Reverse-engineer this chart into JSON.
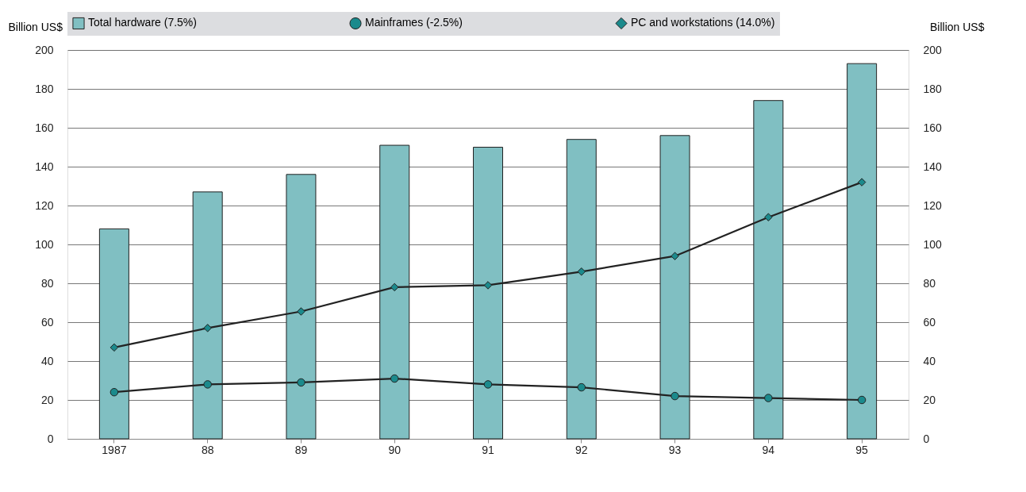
{
  "chart_data": {
    "type": "bar",
    "ylabel": "Billion US$",
    "y2label": "Billion US$",
    "categories": [
      "1987",
      "88",
      "89",
      "90",
      "91",
      "92",
      "93",
      "94",
      "95"
    ],
    "series": [
      {
        "name": "Total hardware (7.5%)",
        "color": "#80bfc2",
        "values": [
          108,
          127,
          136,
          151,
          150,
          154,
          156,
          174,
          193
        ]
      },
      {
        "name": "Mainframes (-2.5%)",
        "type": "line",
        "marker": "circle",
        "color": "#1b8a8c",
        "values": [
          24,
          28,
          29,
          31,
          28,
          26.5,
          22,
          21,
          20
        ]
      },
      {
        "name": "PC and workstations (14.0%)",
        "type": "line",
        "marker": "diamond",
        "color": "#1b8a8c",
        "values": [
          47,
          57,
          65.5,
          78,
          79,
          86,
          94,
          114,
          132
        ]
      }
    ],
    "ylim": [
      0,
      200
    ],
    "yticks": [
      0,
      20,
      40,
      60,
      80,
      100,
      120,
      140,
      160,
      180,
      200
    ],
    "y2lim": [
      0,
      200
    ],
    "y2ticks": [
      0,
      20,
      40,
      60,
      80,
      100,
      120,
      140,
      160,
      180,
      200
    ],
    "grid": "y",
    "legend": "top"
  }
}
